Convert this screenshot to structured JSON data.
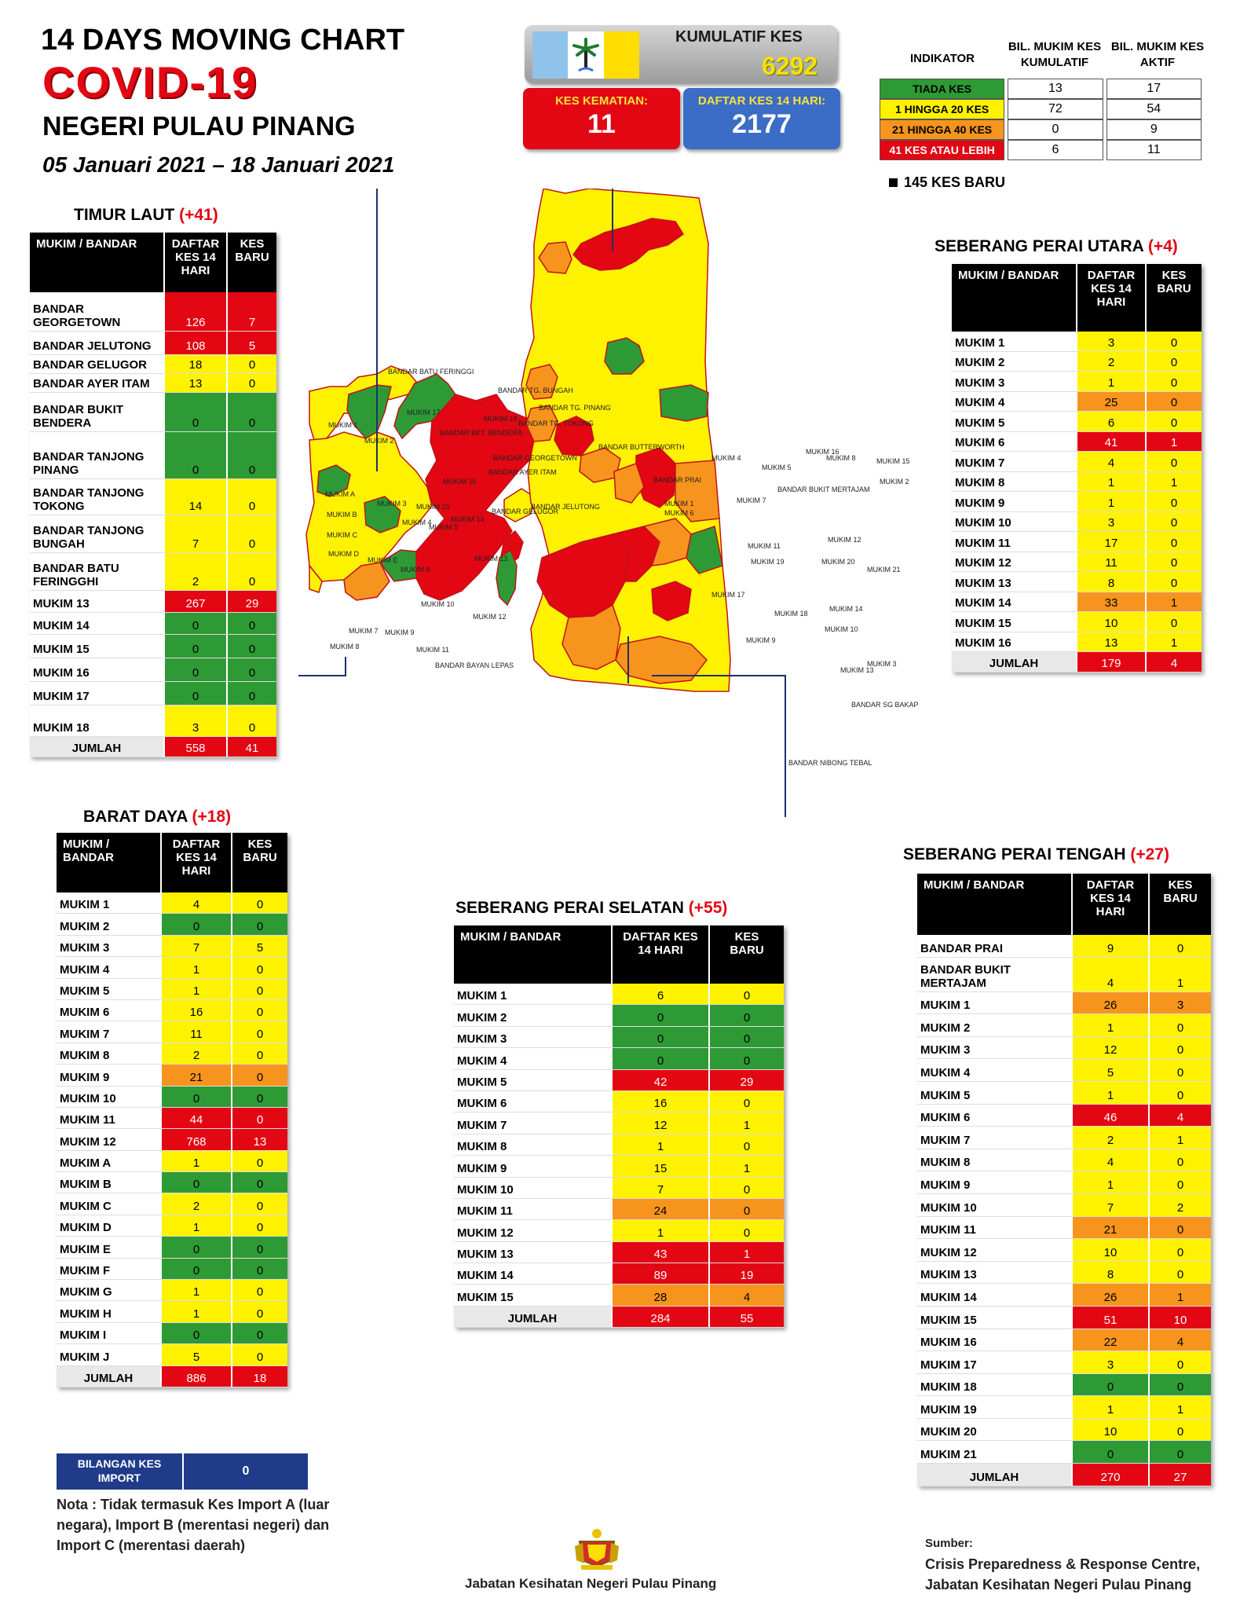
{
  "header": {
    "line1": "14  DAYS MOVING CHART",
    "line2": "COVID-19",
    "line3": "NEGERI PULAU PINANG",
    "date_range": "05 Januari 2021 – 18 Januari 2021"
  },
  "summary": {
    "kumulatif_label": "KUMULATIF KES",
    "kumulatif_value": "6292",
    "kematian_label": "KES KEMATIAN:",
    "kematian_value": "11",
    "daftar_label": "DAFTAR KES 14 HARI:",
    "daftar_value": "2177"
  },
  "colors": {
    "green": "#2e9a35",
    "yellow": "#fff200",
    "orange": "#f7941d",
    "red": "#e30613"
  },
  "indicator": {
    "headers": [
      "INDIKATOR",
      "BIL. MUKIM KES KUMULATIF",
      "BIL. MUKIM KES AKTIF"
    ],
    "rows": [
      {
        "label": "TIADA KES",
        "cum": "13",
        "active": "17",
        "color": "g"
      },
      {
        "label": "1 HINGGA 20 KES",
        "cum": "72",
        "active": "54",
        "color": "y"
      },
      {
        "label": "21 HINGGA 40 KES",
        "cum": "0",
        "active": "9",
        "color": "o"
      },
      {
        "label": "41 KES ATAU LEBIH",
        "cum": "6",
        "active": "11",
        "color": "r"
      }
    ],
    "new_cases": "145 KES BARU"
  },
  "timur_laut": {
    "title": "TIMUR LAUT",
    "plus": "(+41)",
    "headers": [
      "MUKIM / BANDAR",
      "DAFTAR KES 14 HARI",
      "KES BARU"
    ],
    "rows": [
      {
        "name": "BANDAR GEORGETOWN",
        "d": "126",
        "k": "7",
        "cd": "r",
        "ck": "r",
        "h": 50
      },
      {
        "name": "BANDAR JELUTONG",
        "d": "108",
        "k": "5",
        "cd": "r",
        "ck": "r",
        "h": 30
      },
      {
        "name": "BANDAR GELUGOR",
        "d": "18",
        "k": "0",
        "cd": "y",
        "ck": "y",
        "h": 24
      },
      {
        "name": "BANDAR AYER ITAM",
        "d": "13",
        "k": "0",
        "cd": "y",
        "ck": "y",
        "h": 24
      },
      {
        "name": "BANDAR BUKIT BENDERA",
        "d": "0",
        "k": "0",
        "cd": "g",
        "ck": "g",
        "h": 50
      },
      {
        "name": "BANDAR TANJONG PINANG",
        "d": "0",
        "k": "0",
        "cd": "g",
        "ck": "g",
        "h": 60
      },
      {
        "name": "BANDAR TANJONG TOKONG",
        "d": "14",
        "k": "0",
        "cd": "y",
        "ck": "y",
        "h": 46
      },
      {
        "name": "BANDAR TANJONG BUNGAH",
        "d": "7",
        "k": "0",
        "cd": "y",
        "ck": "y",
        "h": 48
      },
      {
        "name": "BANDAR BATU FERINGGHI",
        "d": "2",
        "k": "0",
        "cd": "y",
        "ck": "y",
        "h": 48
      },
      {
        "name": "MUKIM 13",
        "d": "267",
        "k": "29",
        "cd": "r",
        "ck": "r",
        "h": 28
      },
      {
        "name": "MUKIM 14",
        "d": "0",
        "k": "0",
        "cd": "g",
        "ck": "g",
        "h": 28
      },
      {
        "name": "MUKIM 15",
        "d": "0",
        "k": "0",
        "cd": "g",
        "ck": "g",
        "h": 30
      },
      {
        "name": "MUKIM 16",
        "d": "0",
        "k": "0",
        "cd": "g",
        "ck": "g",
        "h": 30
      },
      {
        "name": "MUKIM 17",
        "d": "0",
        "k": "0",
        "cd": "g",
        "ck": "g",
        "h": 30
      },
      {
        "name": "MUKIM 18",
        "d": "3",
        "k": "0",
        "cd": "y",
        "ck": "y",
        "h": 40
      },
      {
        "name": "JUMLAH",
        "d": "558",
        "k": "41",
        "cd": "r",
        "ck": "r",
        "h": 26,
        "total": true
      }
    ]
  },
  "seberang_perai_utara": {
    "title": "SEBERANG PERAI UTARA",
    "plus": "(+4)",
    "headers": [
      "MUKIM / BANDAR",
      "DAFTAR KES 14 HARI",
      "KES BARU"
    ],
    "rows": [
      {
        "name": "MUKIM 1",
        "d": "3",
        "k": "0",
        "cd": "y",
        "ck": "y"
      },
      {
        "name": "MUKIM 2",
        "d": "2",
        "k": "0",
        "cd": "y",
        "ck": "y"
      },
      {
        "name": "MUKIM 3",
        "d": "1",
        "k": "0",
        "cd": "y",
        "ck": "y"
      },
      {
        "name": "MUKIM 4",
        "d": "25",
        "k": "0",
        "cd": "o",
        "ck": "o"
      },
      {
        "name": "MUKIM 5",
        "d": "6",
        "k": "0",
        "cd": "y",
        "ck": "y"
      },
      {
        "name": "MUKIM 6",
        "d": "41",
        "k": "1",
        "cd": "r",
        "ck": "r"
      },
      {
        "name": "MUKIM 7",
        "d": "4",
        "k": "0",
        "cd": "y",
        "ck": "y"
      },
      {
        "name": "MUKIM 8",
        "d": "1",
        "k": "1",
        "cd": "y",
        "ck": "y"
      },
      {
        "name": "MUKIM 9",
        "d": "1",
        "k": "0",
        "cd": "y",
        "ck": "y"
      },
      {
        "name": "MUKIM 10",
        "d": "3",
        "k": "0",
        "cd": "y",
        "ck": "y"
      },
      {
        "name": "MUKIM 11",
        "d": "17",
        "k": "0",
        "cd": "y",
        "ck": "y"
      },
      {
        "name": "MUKIM 12",
        "d": "11",
        "k": "0",
        "cd": "y",
        "ck": "y"
      },
      {
        "name": "MUKIM 13",
        "d": "8",
        "k": "0",
        "cd": "y",
        "ck": "y"
      },
      {
        "name": "MUKIM 14",
        "d": "33",
        "k": "1",
        "cd": "o",
        "ck": "o"
      },
      {
        "name": "MUKIM 15",
        "d": "10",
        "k": "0",
        "cd": "y",
        "ck": "y"
      },
      {
        "name": "MUKIM 16",
        "d": "13",
        "k": "1",
        "cd": "y",
        "ck": "y"
      },
      {
        "name": "JUMLAH",
        "d": "179",
        "k": "4",
        "cd": "r",
        "ck": "r",
        "total": true
      }
    ]
  },
  "barat_daya": {
    "title": "BARAT DAYA",
    "plus": "(+18)",
    "headers": [
      "MUKIM / BANDAR",
      "DAFTAR KES 14 HARI",
      "KES BARU"
    ],
    "rows": [
      {
        "name": "MUKIM 1",
        "d": "4",
        "k": "0",
        "cd": "y",
        "ck": "y"
      },
      {
        "name": "MUKIM 2",
        "d": "0",
        "k": "0",
        "cd": "g",
        "ck": "g"
      },
      {
        "name": "MUKIM 3",
        "d": "7",
        "k": "5",
        "cd": "y",
        "ck": "y"
      },
      {
        "name": "MUKIM 4",
        "d": "1",
        "k": "0",
        "cd": "y",
        "ck": "y"
      },
      {
        "name": "MUKIM 5",
        "d": "1",
        "k": "0",
        "cd": "y",
        "ck": "y"
      },
      {
        "name": "MUKIM 6",
        "d": "16",
        "k": "0",
        "cd": "y",
        "ck": "y"
      },
      {
        "name": "MUKIM 7",
        "d": "11",
        "k": "0",
        "cd": "y",
        "ck": "y"
      },
      {
        "name": "MUKIM 8",
        "d": "2",
        "k": "0",
        "cd": "y",
        "ck": "y"
      },
      {
        "name": "MUKIM 9",
        "d": "21",
        "k": "0",
        "cd": "o",
        "ck": "o"
      },
      {
        "name": "MUKIM 10",
        "d": "0",
        "k": "0",
        "cd": "g",
        "ck": "g"
      },
      {
        "name": "MUKIM 11",
        "d": "44",
        "k": "0",
        "cd": "r",
        "ck": "r"
      },
      {
        "name": "MUKIM 12",
        "d": "768",
        "k": "13",
        "cd": "r",
        "ck": "r"
      },
      {
        "name": "MUKIM A",
        "d": "1",
        "k": "0",
        "cd": "y",
        "ck": "y"
      },
      {
        "name": "MUKIM B",
        "d": "0",
        "k": "0",
        "cd": "g",
        "ck": "g"
      },
      {
        "name": "MUKIM C",
        "d": "2",
        "k": "0",
        "cd": "y",
        "ck": "y"
      },
      {
        "name": "MUKIM D",
        "d": "1",
        "k": "0",
        "cd": "y",
        "ck": "y"
      },
      {
        "name": "MUKIM E",
        "d": "0",
        "k": "0",
        "cd": "g",
        "ck": "g"
      },
      {
        "name": "MUKIM F",
        "d": "0",
        "k": "0",
        "cd": "g",
        "ck": "g"
      },
      {
        "name": "MUKIM G",
        "d": "1",
        "k": "0",
        "cd": "y",
        "ck": "y"
      },
      {
        "name": "MUKIM H",
        "d": "1",
        "k": "0",
        "cd": "y",
        "ck": "y"
      },
      {
        "name": "MUKIM I",
        "d": "0",
        "k": "0",
        "cd": "g",
        "ck": "g"
      },
      {
        "name": "MUKIM J",
        "d": "5",
        "k": "0",
        "cd": "y",
        "ck": "y"
      },
      {
        "name": "JUMLAH",
        "d": "886",
        "k": "18",
        "cd": "r",
        "ck": "r",
        "total": true
      }
    ]
  },
  "seberang_perai_selatan": {
    "title": "SEBERANG PERAI SELATAN",
    "plus": "(+55)",
    "headers": [
      "MUKIM / BANDAR",
      "DAFTAR KES 14 HARI",
      "KES BARU"
    ],
    "rows": [
      {
        "name": "MUKIM 1",
        "d": "6",
        "k": "0",
        "cd": "y",
        "ck": "y"
      },
      {
        "name": "MUKIM 2",
        "d": "0",
        "k": "0",
        "cd": "g",
        "ck": "g"
      },
      {
        "name": "MUKIM 3",
        "d": "0",
        "k": "0",
        "cd": "g",
        "ck": "g"
      },
      {
        "name": "MUKIM 4",
        "d": "0",
        "k": "0",
        "cd": "g",
        "ck": "g"
      },
      {
        "name": "MUKIM 5",
        "d": "42",
        "k": "29",
        "cd": "r",
        "ck": "r"
      },
      {
        "name": "MUKIM 6",
        "d": "16",
        "k": "0",
        "cd": "y",
        "ck": "y"
      },
      {
        "name": "MUKIM 7",
        "d": "12",
        "k": "1",
        "cd": "y",
        "ck": "y"
      },
      {
        "name": "MUKIM 8",
        "d": "1",
        "k": "0",
        "cd": "y",
        "ck": "y"
      },
      {
        "name": "MUKIM 9",
        "d": "15",
        "k": "1",
        "cd": "y",
        "ck": "y"
      },
      {
        "name": "MUKIM 10",
        "d": "7",
        "k": "0",
        "cd": "y",
        "ck": "y"
      },
      {
        "name": "MUKIM 11",
        "d": "24",
        "k": "0",
        "cd": "o",
        "ck": "o"
      },
      {
        "name": "MUKIM 12",
        "d": "1",
        "k": "0",
        "cd": "y",
        "ck": "y"
      },
      {
        "name": "MUKIM 13",
        "d": "43",
        "k": "1",
        "cd": "r",
        "ck": "r"
      },
      {
        "name": "MUKIM 14",
        "d": "89",
        "k": "19",
        "cd": "r",
        "ck": "r"
      },
      {
        "name": "MUKIM 15",
        "d": "28",
        "k": "4",
        "cd": "o",
        "ck": "o"
      },
      {
        "name": "JUMLAH",
        "d": "284",
        "k": "55",
        "cd": "r",
        "ck": "r",
        "total": true
      }
    ]
  },
  "seberang_perai_tengah": {
    "title": "SEBERANG PERAI TENGAH",
    "plus": "(+27)",
    "headers": [
      "MUKIM / BANDAR",
      "DAFTAR KES 14 HARI",
      "KES BARU"
    ],
    "rows": [
      {
        "name": "BANDAR PRAI",
        "d": "9",
        "k": "0",
        "cd": "y",
        "ck": "y"
      },
      {
        "name": "BANDAR BUKIT MERTAJAM",
        "d": "4",
        "k": "1",
        "cd": "y",
        "ck": "y",
        "h": 44
      },
      {
        "name": "MUKIM 1",
        "d": "26",
        "k": "3",
        "cd": "o",
        "ck": "o"
      },
      {
        "name": "MUKIM 2",
        "d": "1",
        "k": "0",
        "cd": "y",
        "ck": "y"
      },
      {
        "name": "MUKIM 3",
        "d": "12",
        "k": "0",
        "cd": "y",
        "ck": "y"
      },
      {
        "name": "MUKIM 4",
        "d": "5",
        "k": "0",
        "cd": "y",
        "ck": "y"
      },
      {
        "name": "MUKIM 5",
        "d": "1",
        "k": "0",
        "cd": "y",
        "ck": "y"
      },
      {
        "name": "MUKIM 6",
        "d": "46",
        "k": "4",
        "cd": "r",
        "ck": "r"
      },
      {
        "name": "MUKIM 7",
        "d": "2",
        "k": "1",
        "cd": "y",
        "ck": "y"
      },
      {
        "name": "MUKIM 8",
        "d": "4",
        "k": "0",
        "cd": "y",
        "ck": "y"
      },
      {
        "name": "MUKIM 9",
        "d": "1",
        "k": "0",
        "cd": "y",
        "ck": "y"
      },
      {
        "name": "MUKIM 10",
        "d": "7",
        "k": "2",
        "cd": "y",
        "ck": "y"
      },
      {
        "name": "MUKIM 11",
        "d": "21",
        "k": "0",
        "cd": "o",
        "ck": "o"
      },
      {
        "name": "MUKIM 12",
        "d": "10",
        "k": "0",
        "cd": "y",
        "ck": "y"
      },
      {
        "name": "MUKIM 13",
        "d": "8",
        "k": "0",
        "cd": "y",
        "ck": "y"
      },
      {
        "name": "MUKIM 14",
        "d": "26",
        "k": "1",
        "cd": "o",
        "ck": "o"
      },
      {
        "name": "MUKIM 15",
        "d": "51",
        "k": "10",
        "cd": "r",
        "ck": "r"
      },
      {
        "name": "MUKIM 16",
        "d": "22",
        "k": "4",
        "cd": "o",
        "ck": "o"
      },
      {
        "name": "MUKIM 17",
        "d": "3",
        "k": "0",
        "cd": "y",
        "ck": "y"
      },
      {
        "name": "MUKIM 18",
        "d": "0",
        "k": "0",
        "cd": "g",
        "ck": "g"
      },
      {
        "name": "MUKIM 19",
        "d": "1",
        "k": "1",
        "cd": "y",
        "ck": "y"
      },
      {
        "name": "MUKIM 20",
        "d": "10",
        "k": "0",
        "cd": "y",
        "ck": "y"
      },
      {
        "name": "MUKIM 21",
        "d": "0",
        "k": "0",
        "cd": "g",
        "ck": "g"
      },
      {
        "name": "JUMLAH",
        "d": "270",
        "k": "27",
        "cd": "r",
        "ck": "r",
        "total": true
      }
    ]
  },
  "import": {
    "label": "BILANGAN KES IMPORT",
    "value": "0"
  },
  "note": "Nota : Tidak termasuk Kes Import A (luar negara), Import B (merentasi negeri) dan Import C (merentasi daerah)",
  "footer": {
    "department": "Jabatan Kesihatan Negeri Pulau Pinang",
    "sumber": "Sumber:",
    "source_line1": "Crisis Preparedness & Response Centre,",
    "source_line2": "Jabatan Kesihatan Negeri Pulau Pinang"
  },
  "map_labels": {
    "island": [
      "BANDAR BATU FERINGGI",
      "BANDAR TG. BUNGAH",
      "BANDAR TG. PINANG",
      "BANDAR TG. TOKONG",
      "BANDAR GEORGETOWN",
      "BANDAR AYER ITAM",
      "BANDAR JELUTONG",
      "BANDAR BKT. BENDERA",
      "BANDAR GELUGOR",
      "BANDAR BAYAN LEPAS",
      "MUKIM 1",
      "MUKIM 2",
      "MUKIM 3",
      "MUKIM 4",
      "MUKIM 5",
      "MUKIM 6",
      "MUKIM 7",
      "MUKIM 8",
      "MUKIM 9",
      "MUKIM 10",
      "MUKIM 11",
      "MUKIM 12",
      "MUKIM 13",
      "MUKIM 14",
      "MUKIM 15",
      "MUKIM 16",
      "MUKIM 17",
      "MUKIM 18",
      "MUKIM A",
      "MUKIM B",
      "MUKIM C",
      "MUKIM D",
      "MUKIM E"
    ],
    "mainland": [
      "BANDAR BUTTERWORTH",
      "BANDAR PRAI",
      "BANDAR BUKIT MERTAJAM",
      "BANDAR SG BAKAP",
      "BANDAR NIBONG TEBAL",
      "MUKIM 1",
      "MUKIM 2",
      "MUKIM 3",
      "MUKIM 4",
      "MUKIM 5",
      "MUKIM 6",
      "MUKIM 7",
      "MUKIM 8",
      "MUKIM 9",
      "MUKIM 10",
      "MUKIM 11",
      "MUKIM 12",
      "MUKIM 13",
      "MUKIM 14",
      "MUKIM 15",
      "MUKIM 16",
      "MUKIM 17",
      "MUKIM 18",
      "MUKIM 19",
      "MUKIM 20",
      "MUKIM 21"
    ]
  }
}
